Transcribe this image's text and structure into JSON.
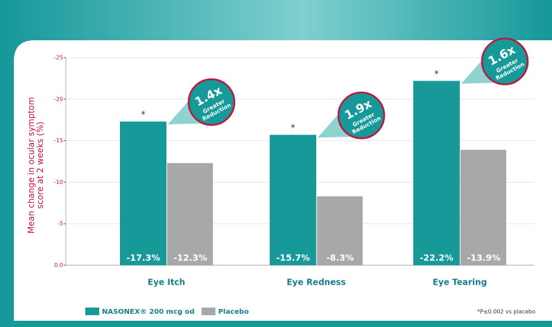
{
  "chart_data": {
    "type": "bar",
    "ylabel": [
      "Mean change in ocular symptom",
      "score at 2 weeks (%)"
    ],
    "categories": [
      "Eye Itch",
      "Eye Redness",
      "Eye Tearing"
    ],
    "series": [
      {
        "name": "NASONEX® 200 mcg od",
        "color": "#17999a",
        "values": [
          -17.3,
          -15.7,
          -22.2
        ],
        "value_labels": [
          "-17.3%",
          "-15.7%",
          "-22.2%"
        ]
      },
      {
        "name": "Placebo",
        "color": "#a7a8aa",
        "values": [
          -12.3,
          -8.3,
          -13.9
        ],
        "value_labels": [
          "-12.3%",
          "-8.3%",
          "-13.9%"
        ]
      }
    ],
    "ylim": [
      0,
      -25
    ],
    "yticks": [
      {
        "value": 0,
        "label": "0.0"
      },
      -5,
      -10,
      -15,
      -20,
      -25
    ],
    "grid": true,
    "legend": "bottom-left",
    "annotations": [
      {
        "marker": "*",
        "ratio": "1.4x",
        "text": [
          "Greater",
          "Reduction"
        ]
      },
      {
        "marker": "*",
        "ratio": "1.9x",
        "text": [
          "Greater",
          "Reduction"
        ]
      },
      {
        "marker": "*",
        "ratio": "1.6x",
        "text": [
          "Greater",
          "Reduction"
        ]
      }
    ],
    "footnote": "*P≤0.002 vs placebo"
  }
}
